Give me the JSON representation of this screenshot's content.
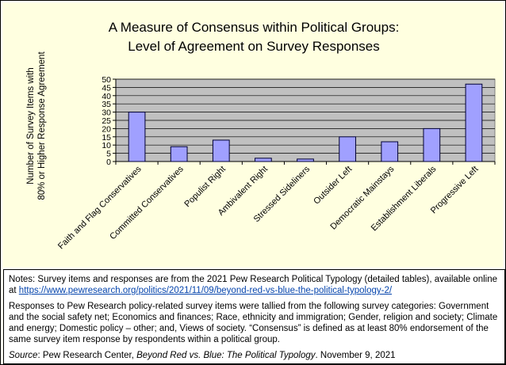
{
  "title_line1": "A Measure of Consensus within Political Groups:",
  "title_line2": "Level of Agreement on Survey Responses",
  "colors": {
    "bar_fill": "#a0a0ff",
    "bar_stroke": "#000033",
    "plot_bg": "#c0c0c0",
    "chart_bg": "#ffffe0"
  },
  "chart_data": {
    "type": "bar",
    "title": "A Measure of Consensus within Political Groups: Level of Agreement on Survey Responses",
    "xlabel": "",
    "ylabel": "Number of Survey Items with 80% or Higher Response Agreement",
    "ylabel_line1": "Number of Survey Items with",
    "ylabel_line2": "80% or Higher Response Agreement",
    "ylim": [
      0,
      50
    ],
    "yticks": [
      0,
      5,
      10,
      15,
      20,
      25,
      30,
      35,
      40,
      45,
      50
    ],
    "grid": true,
    "legend": "none",
    "categories": [
      "Faith and Flag Conservatives",
      "Committed Conservatives",
      "Populist Right",
      "Ambivalent Right",
      "Stressed Sideliners",
      "Outsider Left",
      "Democratic Mainstays",
      "Establishment Liberals",
      "Progressive Left"
    ],
    "values": [
      30,
      9,
      13,
      2,
      1.5,
      15,
      12,
      20,
      47
    ]
  },
  "notes": {
    "p1_text": "Notes: Survey items and responses are from the 2021 Pew Research Political Typology (detailed tables), available online at ",
    "p1_link": "https://www.pewresearch.org/politics/2021/11/09/beyond-red-vs-blue-the-political-typology-2/",
    "p2": "Responses to Pew Research policy-related survey items were tallied from the following survey categories: Government and the social safety net; Economics and finances; Race, ethnicity and immigration; Gender, religion and society; Climate and energy; Domestic policy – other; and, Views of society. “Consensus” is defined as at least 80% endorsement of the same survey item response by respondents within a political group.",
    "source_label": "Source",
    "source_mid": ": Pew Research Center, ",
    "source_title": "Beyond Red vs. Blue: The Political Typology",
    "source_date": ". November 9, 2021"
  }
}
